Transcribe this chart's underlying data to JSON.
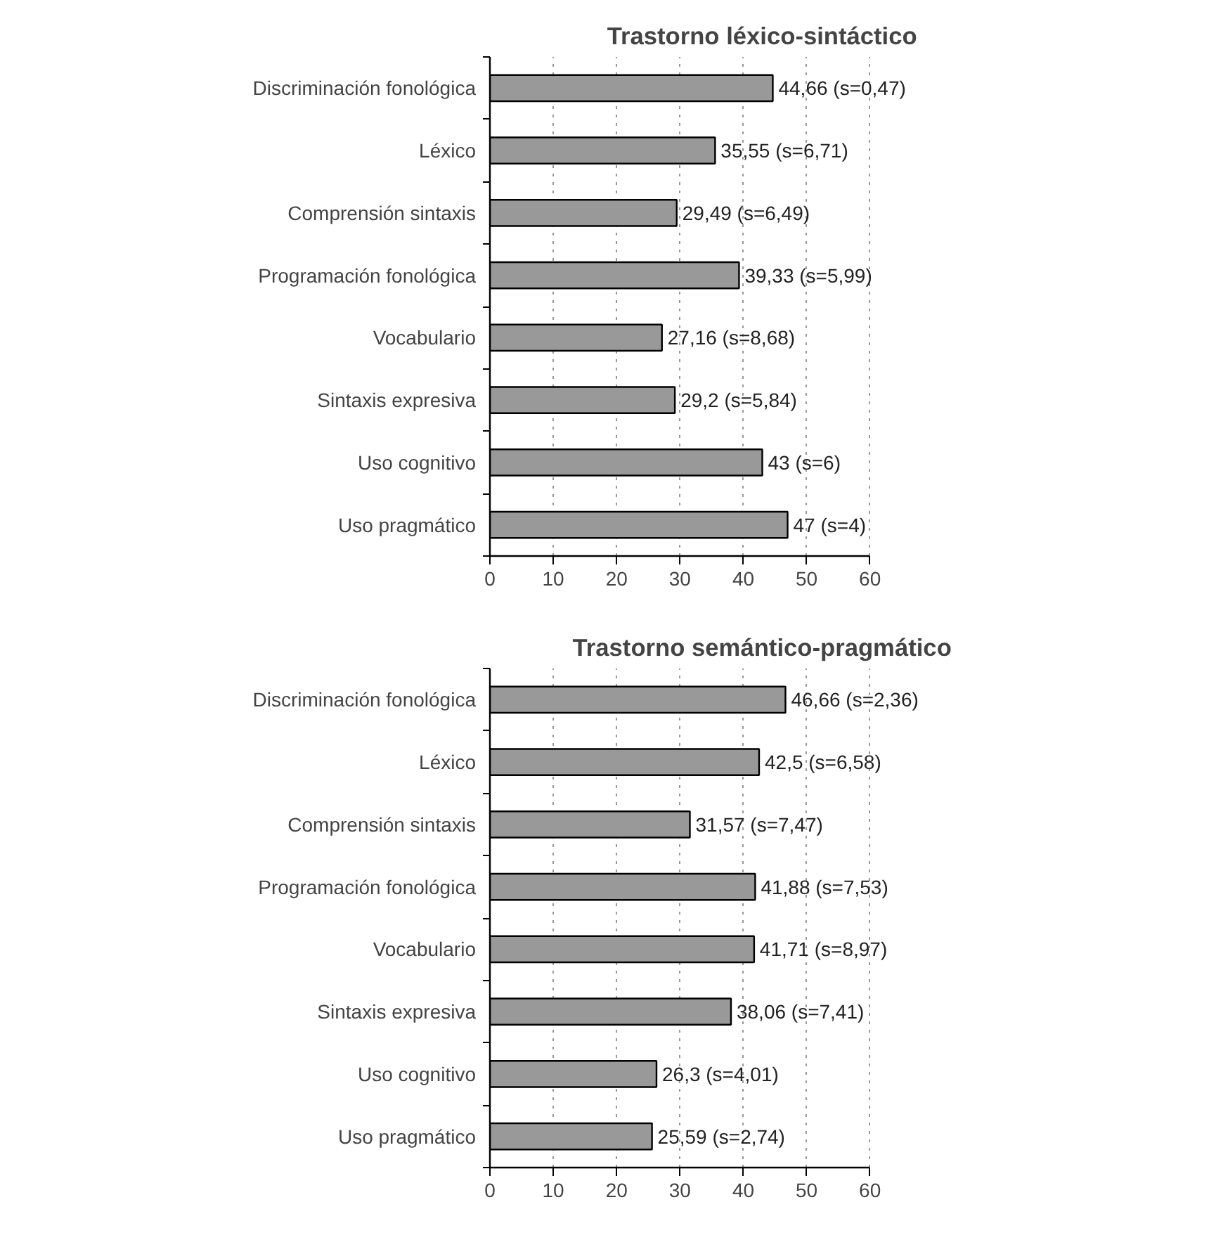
{
  "chart_data": [
    {
      "type": "bar",
      "orientation": "horizontal",
      "title": "Trastorno  léxico-sintáctico",
      "categories": [
        "Discriminación fonológica",
        "Léxico",
        "Comprensión sintaxis",
        "Programación fonológica",
        "Vocabulario",
        "Sintaxis expresiva",
        "Uso cognitivo",
        "Uso pragmático"
      ],
      "values": [
        44.66,
        35.55,
        29.49,
        39.33,
        27.16,
        29.2,
        43,
        47
      ],
      "value_labels": [
        "44,66 (s=0,47)",
        "35,55 (s=6,71)",
        "29,49 (s=6,49)",
        "39,33 (s=5,99)",
        "27,16 (s=8,68)",
        "29,2 (s=5,84)",
        "43 (s=6)",
        "47 (s=4)"
      ],
      "color": "#999999",
      "xlim": [
        0,
        60
      ],
      "xticks": [
        0,
        10,
        20,
        30,
        40,
        50,
        60
      ],
      "grid": "x"
    },
    {
      "type": "bar",
      "orientation": "horizontal",
      "title": "Trastorno  semántico-pragmático",
      "categories": [
        "Discriminación fonológica",
        "Léxico",
        "Comprensión sintaxis",
        "Programación fonológica",
        "Vocabulario",
        "Sintaxis expresiva",
        "Uso cognitivo",
        "Uso pragmático"
      ],
      "values": [
        46.66,
        42.5,
        31.57,
        41.88,
        41.71,
        38.06,
        26.3,
        25.59
      ],
      "value_labels": [
        "46,66 (s=2,36)",
        "42,5 (s=6,58)",
        "31,57 (s=7,47)",
        "41,88 (s=7,53)",
        "41,71 (s=8,97)",
        "38,06 (s=7,41)",
        "26,3 (s=4,01)",
        "25,59 (s=2,74)"
      ],
      "color": "#999999",
      "xlim": [
        0,
        60
      ],
      "xticks": [
        0,
        10,
        20,
        30,
        40,
        50,
        60
      ],
      "grid": "x"
    }
  ]
}
